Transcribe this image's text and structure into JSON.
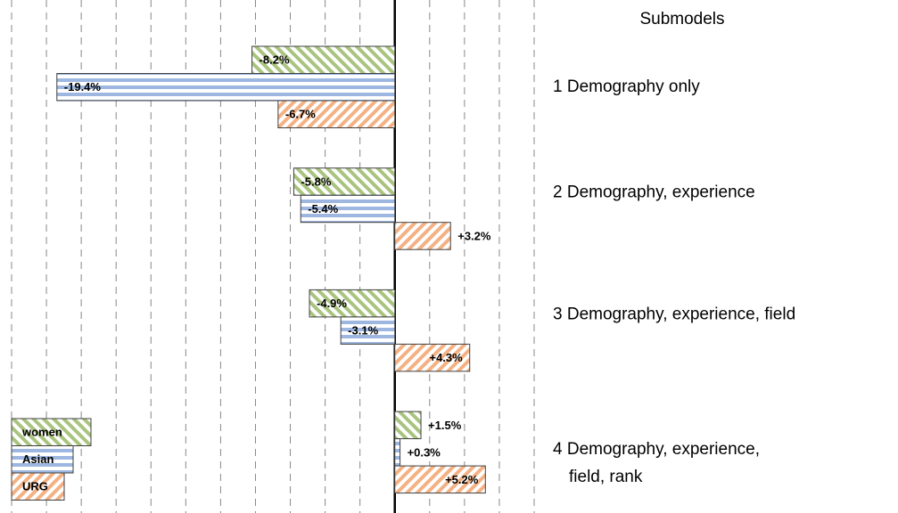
{
  "chart_data": {
    "type": "bar",
    "orientation": "horizontal",
    "legend_title": "Submodels",
    "categories": [
      "1 Demography only",
      "2 Demography, experience",
      "3 Demography, experience, field",
      [
        "4 Demography, experience,",
        "field, rank"
      ]
    ],
    "series": [
      {
        "name": "women",
        "color": "#a9c47f",
        "pattern": "diagonal-down",
        "values": [
          -8.2,
          -5.8,
          -4.9,
          1.5
        ],
        "value_labels": [
          "-8.2%",
          "-5.8%",
          "-4.9%",
          "+1.5%"
        ]
      },
      {
        "name": "Asian",
        "color": "#9db7e0",
        "pattern": "horizontal",
        "values": [
          -19.4,
          -5.4,
          -3.1,
          0.3
        ],
        "value_labels": [
          "-19.4%",
          "-5.4%",
          "-3.1%",
          "+0.3%"
        ]
      },
      {
        "name": "URG",
        "color": "#f4b183",
        "pattern": "diagonal-up",
        "values": [
          -6.7,
          3.2,
          4.3,
          5.2
        ],
        "value_labels": [
          "-6.7%",
          "+3.2%",
          "+4.3%",
          "+5.2%"
        ]
      }
    ],
    "xlim": [
      -22,
      8
    ],
    "xticks": [
      -22,
      -20,
      -18,
      -16,
      -14,
      -12,
      -10,
      -8,
      -6,
      -4,
      -2,
      0,
      2,
      4,
      6,
      8
    ],
    "grid": true,
    "legend": "bottom-left"
  }
}
